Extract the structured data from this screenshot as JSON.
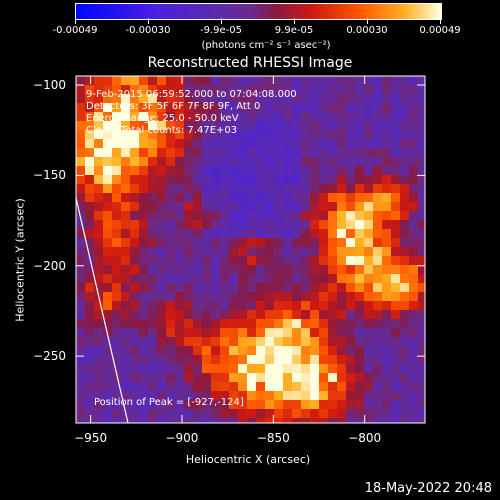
{
  "colorbar": {
    "ticks": [
      "-0.00049",
      "-0.00030",
      "-9.9e-05",
      "9.9e-05",
      "0.00030",
      "0.00049"
    ],
    "unit": "(photons cm⁻² s⁻¹ asec⁻²)"
  },
  "chart_data": {
    "type": "heatmap",
    "title": "Reconstructed RHESSI Image",
    "xlabel": "Heliocentric X (arcsec)",
    "ylabel": "Heliocentric Y (arcsec)",
    "xlim": [
      -958,
      -767
    ],
    "ylim": [
      -287,
      -95
    ],
    "xticks": [
      -950,
      -900,
      -850,
      -800
    ],
    "yticks": [
      -100,
      -150,
      -200,
      -250
    ],
    "colormap": "blue-purple-red-yellow-white",
    "color_range": [
      -0.00049,
      0.00049
    ],
    "peak": [
      -927,
      -124
    ],
    "annotations": {
      "time": "9-Feb-2015 06:59:52.000 to 07:04:08.000",
      "detectors": "Detectors: 3F 5F 6F 7F 8F 9F, Att 0",
      "energy": "Energy Range: 25.0 - 50.0 keV",
      "counts": "Clean: Total counts: 7.47E+03",
      "peak_text": "Position of Peak = [-927,-124]"
    }
  },
  "footer": "18-May-2022 20:48"
}
